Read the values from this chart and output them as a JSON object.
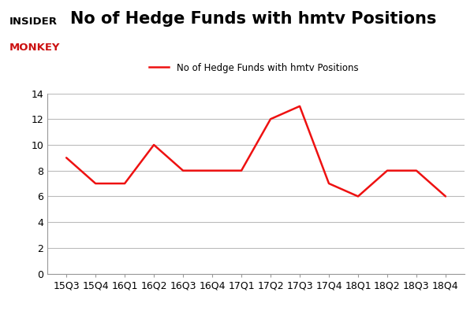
{
  "title": "No of Hedge Funds with hmtv Positions",
  "legend_label": "No of Hedge Funds with hmtv Positions",
  "categories": [
    "15Q3",
    "15Q4",
    "16Q1",
    "16Q2",
    "16Q3",
    "16Q4",
    "17Q1",
    "17Q2",
    "17Q3",
    "17Q4",
    "18Q1",
    "18Q2",
    "18Q3",
    "18Q4"
  ],
  "values": [
    9,
    7,
    7,
    10,
    8,
    8,
    8,
    12,
    13,
    7,
    6,
    8,
    8,
    6
  ],
  "line_color": "#ee1111",
  "line_width": 1.8,
  "ylim": [
    0,
    14
  ],
  "yticks": [
    0,
    2,
    4,
    6,
    8,
    10,
    12,
    14
  ],
  "background_color": "#ffffff",
  "grid_color": "#bbbbbb",
  "title_fontsize": 15,
  "legend_fontsize": 8.5,
  "tick_fontsize": 9,
  "axis_color": "#999999"
}
